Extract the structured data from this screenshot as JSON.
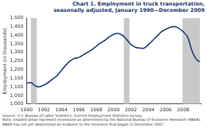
{
  "chart_data": {
    "type": "line",
    "title": "Chart 1.  Employment in truck transportation, seasonally adjusted, January 1990—December 2009",
    "y_label": "Employment (in thousands)",
    "source": "Source: U.S. Bureau of Labor Statistics, Current Employment Statistics survey.",
    "note": "Note: Shaded areas represent recessions as determined by the National Bureau of Economic Research (NBER). NBER has not yet determined an endpoint to the recession that began in December 2007.",
    "x": [
      1990.0,
      1990.5,
      1991.0,
      1991.5,
      1992.0,
      1992.5,
      1993.0,
      1993.5,
      1994.0,
      1994.5,
      1995.0,
      1995.5,
      1996.0,
      1996.5,
      1997.0,
      1997.5,
      1998.0,
      1998.5,
      1999.0,
      1999.5,
      2000.0,
      2000.5,
      2001.0,
      2001.5,
      2002.0,
      2002.5,
      2003.0,
      2003.5,
      2004.0,
      2004.5,
      2005.0,
      2005.5,
      2006.0,
      2006.5,
      2007.0,
      2007.5,
      2008.0,
      2008.5,
      2009.0,
      2009.5,
      2009.92
    ],
    "values": [
      1120,
      1125,
      1105,
      1100,
      1110,
      1125,
      1145,
      1165,
      1195,
      1225,
      1250,
      1265,
      1270,
      1285,
      1300,
      1315,
      1335,
      1355,
      1370,
      1390,
      1405,
      1410,
      1400,
      1375,
      1345,
      1330,
      1325,
      1325,
      1345,
      1370,
      1395,
      1420,
      1435,
      1445,
      1450,
      1440,
      1420,
      1390,
      1310,
      1260,
      1245
    ],
    "color": "#1f3f7f",
    "recessions": [
      [
        1990.5,
        1991.17
      ],
      [
        2001.17,
        2001.83
      ],
      [
        2007.92,
        2009.92
      ]
    ],
    "xlim": [
      1990,
      2010
    ],
    "xticks": [
      1990,
      1992,
      1994,
      1996,
      1998,
      2000,
      2002,
      2004,
      2006,
      2008
    ],
    "ylim": [
      1000,
      1500
    ],
    "yticks": [
      {
        "value": 1000,
        "label": "1,000"
      },
      {
        "value": 1050,
        "label": "1,050"
      },
      {
        "value": 1100,
        "label": "1,100"
      },
      {
        "value": 1150,
        "label": "1,150"
      },
      {
        "value": 1200,
        "label": "1,200"
      },
      {
        "value": 1250,
        "label": "1,250"
      },
      {
        "value": 1300,
        "label": "1,300"
      },
      {
        "value": 1350,
        "label": "1,350"
      },
      {
        "value": 1400,
        "label": "1,400"
      },
      {
        "value": 1450,
        "label": "1,450"
      },
      {
        "value": 1500,
        "label": "1,500"
      }
    ],
    "grid": false
  }
}
